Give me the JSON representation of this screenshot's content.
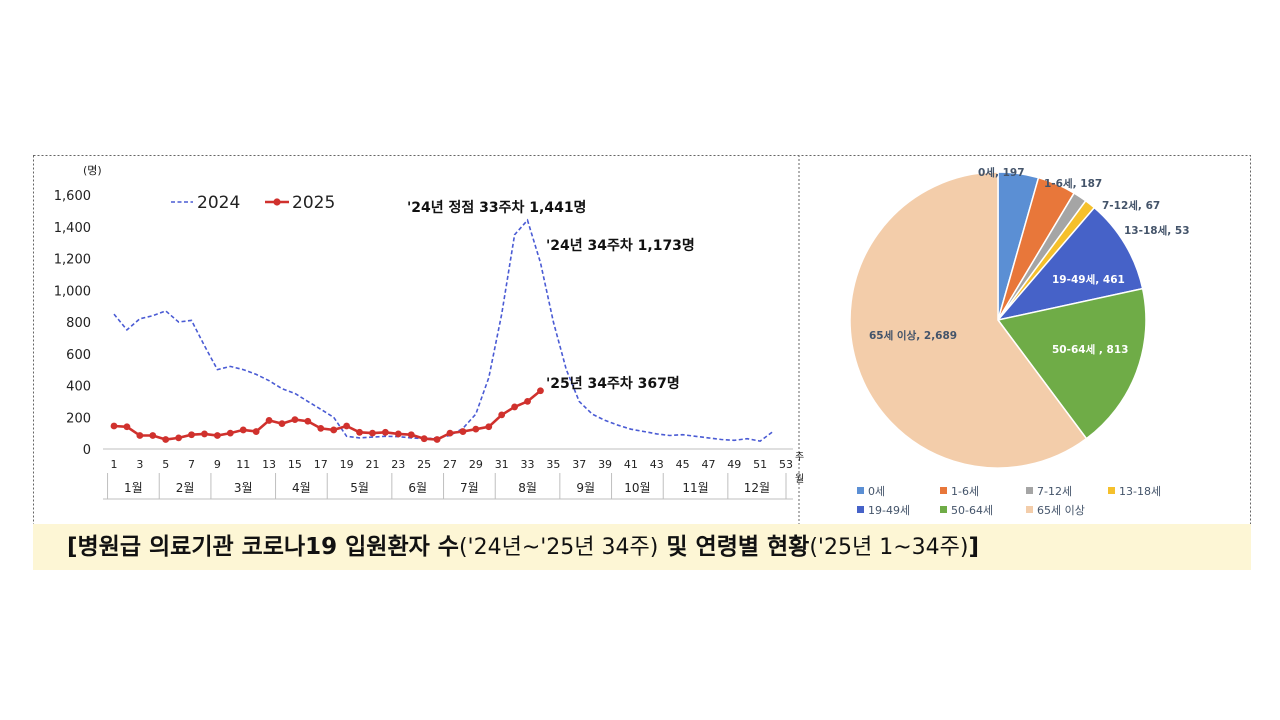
{
  "chart_data": [
    {
      "type": "line",
      "ylabel": "(명)",
      "ylim": [
        0,
        1600
      ],
      "yticks": [
        "0",
        "200",
        "400",
        "600",
        "800",
        "1,000",
        "1,200",
        "1,400",
        "1,600"
      ],
      "x_tick_labels": [
        "1",
        "3",
        "5",
        "7",
        "9",
        "11",
        "13",
        "15",
        "17",
        "19",
        "21",
        "23",
        "25",
        "27",
        "29",
        "31",
        "33",
        "35",
        "37",
        "39",
        "41",
        "43",
        "45",
        "47",
        "49",
        "51",
        "53"
      ],
      "x_axis_unit": "주",
      "months": [
        "1월",
        "2월",
        "3월",
        "4월",
        "5월",
        "6월",
        "7월",
        "8월",
        "9월",
        "10월",
        "11월",
        "12월"
      ],
      "month_axis_unit": "월",
      "series": [
        {
          "name": "2024",
          "color": "#4a5bd4",
          "style": "dashed",
          "x": [
            1,
            2,
            3,
            4,
            5,
            6,
            7,
            8,
            9,
            10,
            11,
            12,
            13,
            14,
            15,
            16,
            17,
            18,
            19,
            20,
            21,
            22,
            23,
            24,
            25,
            26,
            27,
            28,
            29,
            30,
            31,
            32,
            33,
            34,
            35,
            36,
            37,
            38,
            39,
            40,
            41,
            42,
            43,
            44,
            45,
            46,
            47,
            48,
            49,
            50,
            51,
            52
          ],
          "values": [
            850,
            750,
            820,
            840,
            870,
            800,
            810,
            650,
            500,
            520,
            500,
            470,
            430,
            380,
            350,
            300,
            250,
            200,
            80,
            70,
            75,
            80,
            78,
            70,
            65,
            70,
            85,
            130,
            220,
            450,
            850,
            1350,
            1441,
            1173,
            800,
            500,
            300,
            220,
            180,
            150,
            125,
            110,
            95,
            85,
            90,
            80,
            70,
            60,
            55,
            65,
            50,
            110
          ]
        },
        {
          "name": "2025",
          "color": "#d0312d",
          "style": "solid-marker",
          "x": [
            1,
            2,
            3,
            4,
            5,
            6,
            7,
            8,
            9,
            10,
            11,
            12,
            13,
            14,
            15,
            16,
            17,
            18,
            19,
            20,
            21,
            22,
            23,
            24,
            25,
            26,
            27,
            28,
            29,
            30,
            31,
            32,
            33,
            34
          ],
          "values": [
            145,
            140,
            85,
            85,
            60,
            70,
            90,
            95,
            85,
            100,
            120,
            110,
            180,
            160,
            185,
            175,
            130,
            120,
            145,
            105,
            100,
            105,
            95,
            90,
            65,
            60,
            100,
            110,
            125,
            140,
            215,
            265,
            300,
            367
          ]
        }
      ],
      "annotations": [
        "'24년 정점 33주차 1,441명",
        "'24년 34주차 1,173명",
        "'25년 34주차 367명"
      ]
    },
    {
      "type": "pie",
      "slices": [
        {
          "label": "0세",
          "value": 197,
          "color": "#5b8fd4",
          "data_label": "0세, 197"
        },
        {
          "label": "1-6세",
          "value": 187,
          "color": "#e8773a",
          "data_label": "1-6세, 187"
        },
        {
          "label": "7-12세",
          "value": 67,
          "color": "#a5a5a5",
          "data_label": "7-12세, 67"
        },
        {
          "label": "13-18세",
          "value": 53,
          "color": "#f5c02c",
          "data_label": "13-18세, 53"
        },
        {
          "label": "19-49세",
          "value": 461,
          "color": "#4662c8",
          "data_label": "19-49세, 461"
        },
        {
          "label": "50-64세",
          "value": 813,
          "color": "#6fac47",
          "data_label": "50-64세 , 813"
        },
        {
          "label": "65세 이상",
          "value": 2689,
          "color": "#f3cdaa",
          "data_label": "65세 이상, 2,689"
        }
      ],
      "legend_position": "bottom"
    }
  ],
  "caption": {
    "part1": "[병원급 의료기관 코로나19 입원환자 수",
    "part2": "('24년~'25년 34주)",
    "part3": " 및 연령별 현황",
    "part4": "('25년 1~34주)",
    "part5": "]"
  }
}
